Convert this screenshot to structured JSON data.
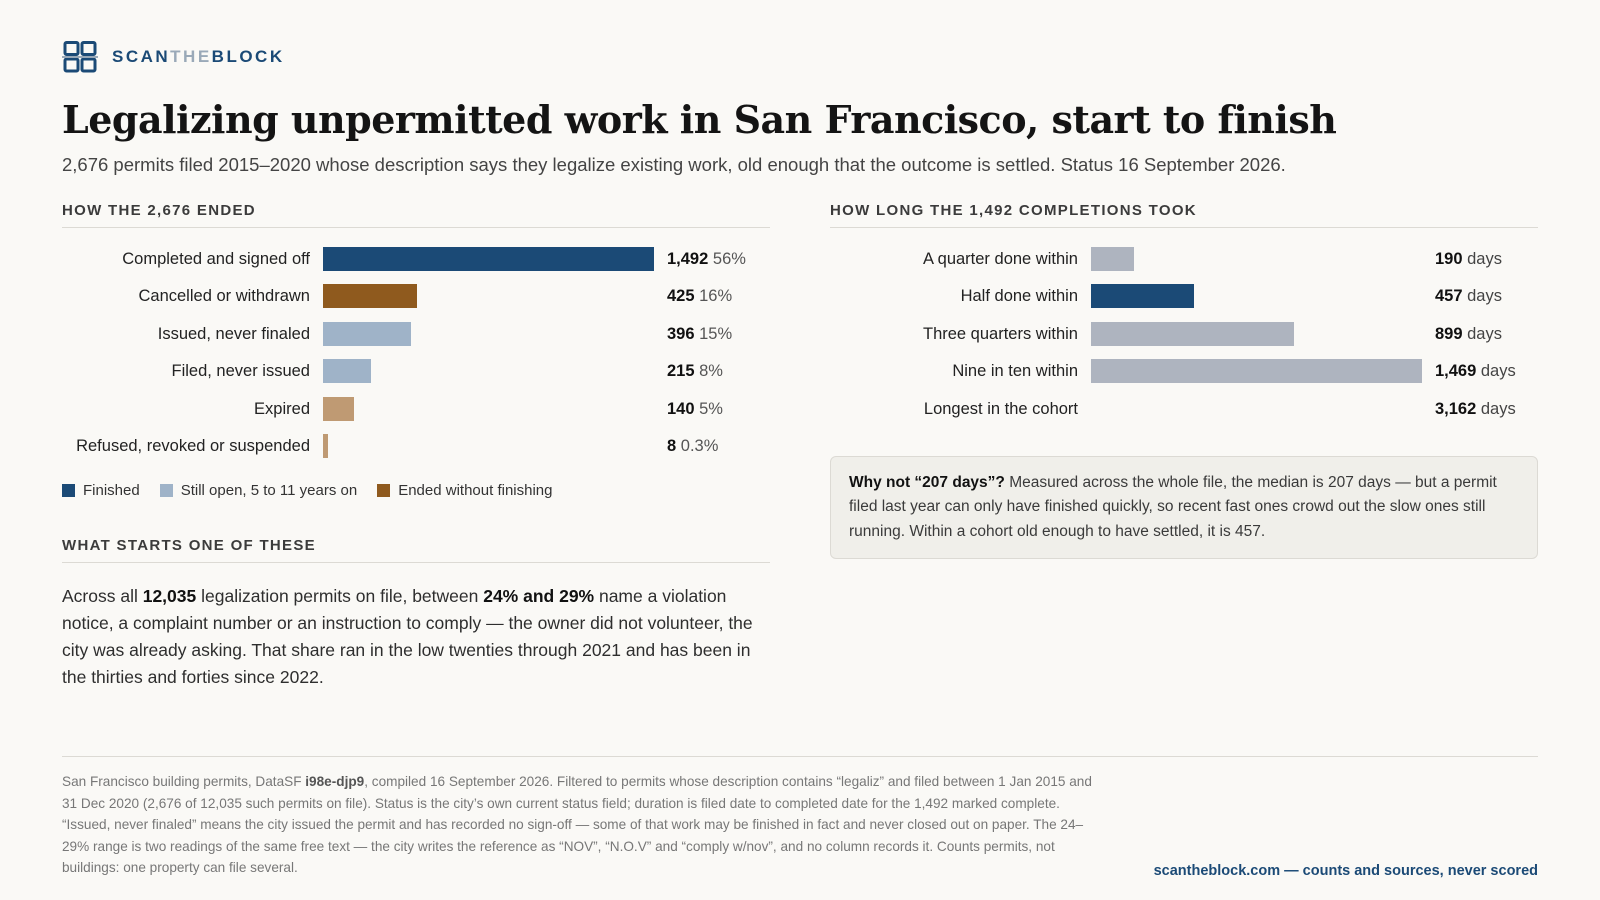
{
  "brand": {
    "name_a": "SCAN",
    "name_b": "THE",
    "name_c": "BLOCK",
    "color": "#1b4a76"
  },
  "title": "Legalizing unpermitted work in San Francisco, start to finish",
  "subtitle": "2,676 permits filed 2015–2020 whose description says they legalize existing work, old enough that the outcome is settled. Status 16 September 2026.",
  "outcomes": {
    "heading": "HOW THE 2,676 ENDED",
    "legend": [
      {
        "label": "Finished",
        "color": "#1b4a76"
      },
      {
        "label": "Still open, 5 to 11 years on",
        "color": "#9fb3c8"
      },
      {
        "label": "Ended without finishing",
        "color": "#8f5a1e"
      }
    ]
  },
  "durations": {
    "heading": "HOW LONG THE 1,492 COMPLETIONS TOOK",
    "unit": "days"
  },
  "chart_data": [
    {
      "type": "bar",
      "orientation": "horizontal",
      "title": "HOW THE 2,676 ENDED",
      "categories": [
        "Completed and signed off",
        "Cancelled or withdrawn",
        "Issued, never finaled",
        "Filed, never issued",
        "Expired",
        "Refused, revoked or suspended"
      ],
      "values": [
        1492,
        425,
        396,
        215,
        140,
        8
      ],
      "value_labels": [
        "1,492",
        "425",
        "396",
        "215",
        "140",
        "8"
      ],
      "percent_labels": [
        "56%",
        "16%",
        "15%",
        "8%",
        "5%",
        "0.3%"
      ],
      "colors": [
        "#1b4a76",
        "#8f5a1e",
        "#9fb3c8",
        "#9fb3c8",
        "#bf9a73",
        "#bf9a73"
      ],
      "xlim": [
        0,
        1492
      ],
      "grid": false,
      "legend_placement": "bottom-left"
    },
    {
      "type": "bar",
      "orientation": "horizontal",
      "title": "HOW LONG THE 1,492 COMPLETIONS TOOK",
      "categories": [
        "A quarter done within",
        "Half done within",
        "Three quarters within",
        "Nine in ten within",
        "Longest in the cohort"
      ],
      "values": [
        190,
        457,
        899,
        1469,
        3162
      ],
      "value_labels": [
        "190",
        "457",
        "899",
        "1,469",
        "3,162"
      ],
      "bar_drawn": [
        true,
        true,
        true,
        true,
        false
      ],
      "colors": [
        "#aeb4bf",
        "#1b4a76",
        "#aeb4bf",
        "#aeb4bf",
        "#aeb4bf"
      ],
      "xlim": [
        0,
        1469
      ],
      "grid": false
    }
  ],
  "starts": {
    "heading": "WHAT STARTS ONE OF THESE",
    "t1": "Across all ",
    "b1": "12,035",
    "t2": " legalization permits on file, between ",
    "b2": "24% and 29%",
    "t3": " name a violation notice, a complaint number or an instruction to comply — the owner did not volunteer, the city was already asking. That share ran in the low twenties through 2021 and has been in the thirties and forties since 2022."
  },
  "note": {
    "lead": "Why not “207 days”?",
    "text": " Measured across the whole file, the median is 207 days — but a permit filed last year can only have finished quickly, so recent fast ones crowd out the slow ones still running. Within a cohort old enough to have settled, it is 457."
  },
  "footer": {
    "t1": "San Francisco building permits, DataSF ",
    "b1": "i98e-djp9",
    "t2": ", compiled 16 September 2026. Filtered to permits whose description contains “legaliz” and filed between 1 Jan 2015 and 31 Dec 2020 (2,676 of 12,035 such permits on file). Status is the city’s own current status field; duration is filed date to completed date for the 1,492 marked complete. “Issued, never finaled” means the city issued the permit and has recorded no sign-off — some of that work may be finished in fact and never closed out on paper. The 24–29% range is two readings of the same free text — the city writes the reference as “NOV”, “N.O.V” and “comply w/nov”, and no column records it. Counts permits, not buildings: one property can file several.",
    "tagline": "scantheblock.com — counts and sources, never scored"
  }
}
